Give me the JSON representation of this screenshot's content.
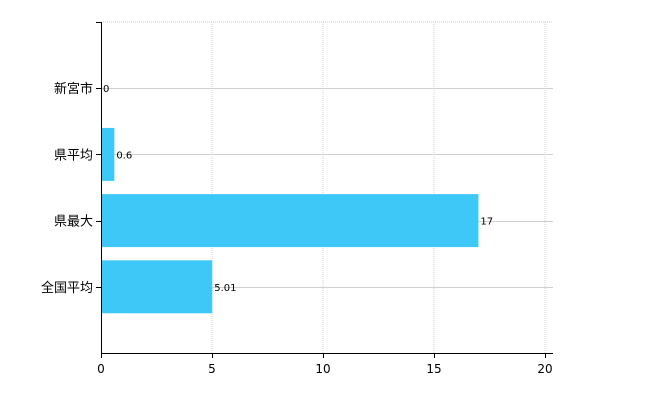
{
  "chart_data": {
    "type": "bar",
    "orientation": "horizontal",
    "categories": [
      "新宮市",
      "県平均",
      "県最大",
      "全国平均"
    ],
    "values": [
      0,
      0.6,
      17,
      5.01
    ],
    "value_labels": [
      "0",
      "0.6",
      "17",
      "5.01"
    ],
    "xlim": [
      0,
      20
    ],
    "xticks": [
      0,
      5,
      10,
      15,
      20
    ],
    "title": "",
    "xlabel": "",
    "ylabel": "",
    "grid": true,
    "bar_color": "#3EC8F8",
    "grid_color": "#D0D0D0",
    "axis_color": "#000000"
  }
}
